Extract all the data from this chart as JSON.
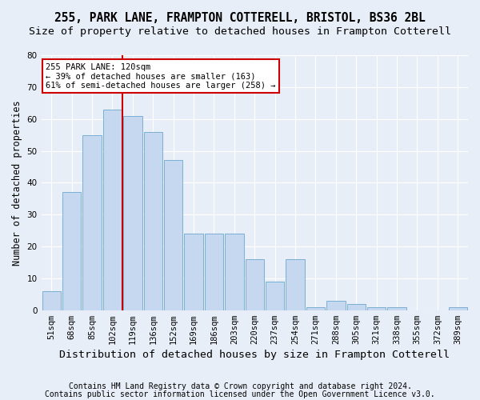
{
  "title1": "255, PARK LANE, FRAMPTON COTTERELL, BRISTOL, BS36 2BL",
  "title2": "Size of property relative to detached houses in Frampton Cotterell",
  "xlabel": "Distribution of detached houses by size in Frampton Cotterell",
  "ylabel": "Number of detached properties",
  "footnote1": "Contains HM Land Registry data © Crown copyright and database right 2024.",
  "footnote2": "Contains public sector information licensed under the Open Government Licence v3.0.",
  "categories": [
    "51sqm",
    "68sqm",
    "85sqm",
    "102sqm",
    "119sqm",
    "136sqm",
    "152sqm",
    "169sqm",
    "186sqm",
    "203sqm",
    "220sqm",
    "237sqm",
    "254sqm",
    "271sqm",
    "288sqm",
    "305sqm",
    "321sqm",
    "338sqm",
    "355sqm",
    "372sqm",
    "389sqm"
  ],
  "values": [
    6,
    37,
    55,
    63,
    61,
    56,
    47,
    24,
    24,
    24,
    16,
    9,
    16,
    1,
    3,
    2,
    1,
    1,
    0,
    0,
    1
  ],
  "bar_color": "#c5d8f0",
  "bar_edge_color": "#7ab0d4",
  "ref_line_color": "#cc0000",
  "annotation_line1": "255 PARK LANE: 120sqm",
  "annotation_line2": "← 39% of detached houses are smaller (163)",
  "annotation_line3": "61% of semi-detached houses are larger (258) →",
  "annotation_box_color": "#cc0000",
  "ylim": [
    0,
    80
  ],
  "yticks": [
    0,
    10,
    20,
    30,
    40,
    50,
    60,
    70,
    80
  ],
  "background_color": "#e8eef7",
  "axes_background": "#e8eef7",
  "grid_color": "#ffffff",
  "title1_fontsize": 10.5,
  "title2_fontsize": 9.5,
  "xlabel_fontsize": 9.5,
  "ylabel_fontsize": 8.5,
  "tick_fontsize": 7.5,
  "footnote_fontsize": 7
}
